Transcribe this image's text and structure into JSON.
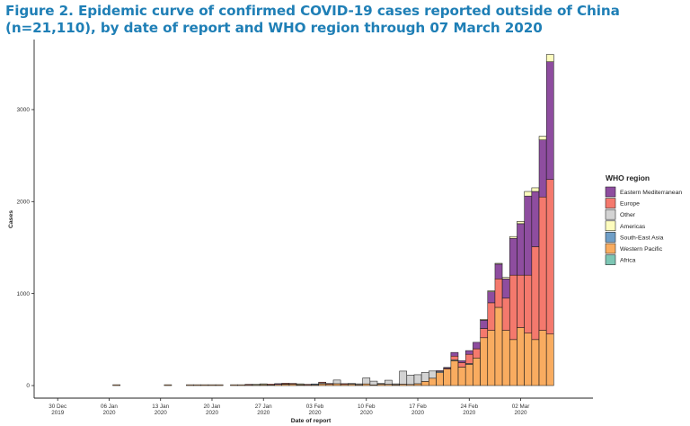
{
  "figure": {
    "title": "Figure 2. Epidemic curve of confirmed COVID-19 cases reported outside of China (n=21,110), by date of report and WHO region through 07 March 2020"
  },
  "chart_data": {
    "type": "bar",
    "stacked": true,
    "title": "Figure 2. Epidemic curve of confirmed COVID-19 cases reported outside of China (n=21,110), by date of report and WHO region through 07 March 2020",
    "xlabel": "Date of report",
    "ylabel": "Cases",
    "ylim": [
      0,
      3650
    ],
    "y_ticks": [
      0,
      1000,
      2000,
      3000
    ],
    "x_ticks": [
      {
        "day": 0,
        "line1": "30 Dec",
        "line2": "2019"
      },
      {
        "day": 7,
        "line1": "06 Jan",
        "line2": "2020"
      },
      {
        "day": 14,
        "line1": "13 Jan",
        "line2": "2020"
      },
      {
        "day": 21,
        "line1": "20 Jan",
        "line2": "2020"
      },
      {
        "day": 28,
        "line1": "27 Jan",
        "line2": "2020"
      },
      {
        "day": 35,
        "line1": "03 Feb",
        "line2": "2020"
      },
      {
        "day": 42,
        "line1": "10 Feb",
        "line2": "2020"
      },
      {
        "day": 49,
        "line1": "17 Feb",
        "line2": "2020"
      },
      {
        "day": 56,
        "line1": "24 Feb",
        "line2": "2020"
      },
      {
        "day": 63,
        "line1": "02 Mar",
        "line2": "2020"
      }
    ],
    "x_range_days": [
      -3,
      71
    ],
    "legend_title": "WHO region",
    "legend_position": "right",
    "grid": false,
    "series": [
      {
        "name": "Eastern Mediterranean",
        "color": "#8e4d9f"
      },
      {
        "name": "Europe",
        "color": "#f4796d"
      },
      {
        "name": "Other",
        "color": "#d3d3d3"
      },
      {
        "name": "Americas",
        "color": "#fdfcbe"
      },
      {
        "name": "South-East Asia",
        "color": "#6e9ec7"
      },
      {
        "name": "Western Pacific",
        "color": "#f9ac60"
      },
      {
        "name": "Africa",
        "color": "#7dc6b4"
      }
    ],
    "bars": [
      {
        "date": "2020-01-07",
        "day": 8,
        "segments": {
          "Western Pacific": 1
        }
      },
      {
        "date": "2020-01-14",
        "day": 15,
        "segments": {
          "Western Pacific": 1
        }
      },
      {
        "date": "2020-01-17",
        "day": 18,
        "segments": {
          "Western Pacific": 1
        }
      },
      {
        "date": "2020-01-18",
        "day": 19,
        "segments": {
          "Western Pacific": 1
        }
      },
      {
        "date": "2020-01-19",
        "day": 20,
        "segments": {
          "Western Pacific": 1
        }
      },
      {
        "date": "2020-01-20",
        "day": 21,
        "segments": {
          "Western Pacific": 1
        }
      },
      {
        "date": "2020-01-21",
        "day": 22,
        "segments": {
          "Western Pacific": 2
        }
      },
      {
        "date": "2020-01-23",
        "day": 24,
        "segments": {
          "Western Pacific": 3
        }
      },
      {
        "date": "2020-01-24",
        "day": 25,
        "segments": {
          "Western Pacific": 5
        }
      },
      {
        "date": "2020-01-25",
        "day": 26,
        "segments": {
          "Western Pacific": 5,
          "Europe": 3
        }
      },
      {
        "date": "2020-01-26",
        "day": 27,
        "segments": {
          "Western Pacific": 5,
          "Americas": 1
        }
      },
      {
        "date": "2020-01-27",
        "day": 28,
        "segments": {
          "Western Pacific": 10,
          "Americas": 2
        }
      },
      {
        "date": "2020-01-28",
        "day": 29,
        "segments": {
          "Western Pacific": 7,
          "Europe": 5
        }
      },
      {
        "date": "2020-01-29",
        "day": 30,
        "segments": {
          "Western Pacific": 12,
          "Eastern Mediterranean": 4
        }
      },
      {
        "date": "2020-01-30",
        "day": 31,
        "segments": {
          "Western Pacific": 15,
          "South-East Asia": 1,
          "Europe": 3
        }
      },
      {
        "date": "2020-01-31",
        "day": 32,
        "segments": {
          "Western Pacific": 15,
          "Europe": 7
        }
      },
      {
        "date": "2020-02-01",
        "day": 33,
        "segments": {
          "Western Pacific": 8,
          "Europe": 2,
          "Americas": 1
        }
      },
      {
        "date": "2020-02-02",
        "day": 34,
        "segments": {
          "Western Pacific": 5,
          "Europe": 4
        }
      },
      {
        "date": "2020-02-03",
        "day": 35,
        "segments": {
          "Western Pacific": 9,
          "South-East Asia": 3
        }
      },
      {
        "date": "2020-02-04",
        "day": 36,
        "segments": {
          "Western Pacific": 18,
          "Other": 10,
          "Europe": 5
        }
      },
      {
        "date": "2020-02-05",
        "day": 37,
        "segments": {
          "Western Pacific": 14,
          "Europe": 3
        }
      },
      {
        "date": "2020-02-06",
        "day": 38,
        "segments": {
          "Western Pacific": 20,
          "Other": 40
        }
      },
      {
        "date": "2020-02-07",
        "day": 39,
        "segments": {
          "Western Pacific": 12,
          "Europe": 4
        }
      },
      {
        "date": "2020-02-08",
        "day": 40,
        "segments": {
          "Western Pacific": 15,
          "Other": 5
        }
      },
      {
        "date": "2020-02-09",
        "day": 41,
        "segments": {
          "Western Pacific": 10,
          "Other": 6
        }
      },
      {
        "date": "2020-02-10",
        "day": 42,
        "segments": {
          "Western Pacific": 18,
          "Other": 65
        }
      },
      {
        "date": "2020-02-11",
        "day": 43,
        "segments": {
          "Western Pacific": 8,
          "Other": 40
        }
      },
      {
        "date": "2020-02-12",
        "day": 44,
        "segments": {
          "Western Pacific": 15,
          "Other": 3
        }
      },
      {
        "date": "2020-02-13",
        "day": 45,
        "segments": {
          "Western Pacific": 14,
          "Other": 44
        }
      },
      {
        "date": "2020-02-14",
        "day": 46,
        "segments": {
          "Western Pacific": 10,
          "Other": 4
        }
      },
      {
        "date": "2020-02-15",
        "day": 47,
        "segments": {
          "Western Pacific": 15,
          "Other": 142
        }
      },
      {
        "date": "2020-02-16",
        "day": 48,
        "segments": {
          "Western Pacific": 12,
          "Other": 102
        }
      },
      {
        "date": "2020-02-17",
        "day": 49,
        "segments": {
          "Western Pacific": 20,
          "Other": 98
        }
      },
      {
        "date": "2020-02-18",
        "day": 50,
        "segments": {
          "Western Pacific": 45,
          "Other": 98
        }
      },
      {
        "date": "2020-02-19",
        "day": 51,
        "segments": {
          "Western Pacific": 80,
          "Other": 78
        }
      },
      {
        "date": "2020-02-20",
        "day": 52,
        "segments": {
          "Western Pacific": 140,
          "Other": 13,
          "Eastern Mediterranean": 5
        }
      },
      {
        "date": "2020-02-21",
        "day": 53,
        "segments": {
          "Western Pacific": 180,
          "Europe": 8,
          "Eastern Mediterranean": 8
        }
      },
      {
        "date": "2020-02-22",
        "day": 54,
        "segments": {
          "Western Pacific": 270,
          "Europe": 40,
          "Eastern Mediterranean": 40,
          "Other": 10
        }
      },
      {
        "date": "2020-02-23",
        "day": 55,
        "segments": {
          "Western Pacific": 200,
          "Europe": 50,
          "Eastern Mediterranean": 20
        }
      },
      {
        "date": "2020-02-24",
        "day": 56,
        "segments": {
          "Western Pacific": 230,
          "Europe": 100,
          "Eastern Mediterranean": 40,
          "Other": 10
        }
      },
      {
        "date": "2020-02-25",
        "day": 57,
        "segments": {
          "Western Pacific": 300,
          "Europe": 100,
          "Eastern Mediterranean": 70
        }
      },
      {
        "date": "2020-02-26",
        "day": 58,
        "segments": {
          "Western Pacific": 520,
          "Europe": 100,
          "Eastern Mediterranean": 90,
          "Americas": 10
        }
      },
      {
        "date": "2020-02-27",
        "day": 59,
        "segments": {
          "Western Pacific": 600,
          "Europe": 300,
          "Eastern Mediterranean": 120,
          "Americas": 10
        }
      },
      {
        "date": "2020-02-28",
        "day": 60,
        "segments": {
          "Western Pacific": 850,
          "Europe": 310,
          "Eastern Mediterranean": 160,
          "Americas": 5
        }
      },
      {
        "date": "2020-02-29",
        "day": 61,
        "segments": {
          "Western Pacific": 600,
          "Europe": 350,
          "Eastern Mediterranean": 210,
          "Americas": 15
        }
      },
      {
        "date": "2020-03-01",
        "day": 62,
        "segments": {
          "Western Pacific": 500,
          "Europe": 700,
          "Eastern Mediterranean": 400,
          "Americas": 20
        }
      },
      {
        "date": "2020-03-02",
        "day": 63,
        "segments": {
          "Western Pacific": 630,
          "Europe": 570,
          "Eastern Mediterranean": 560,
          "Americas": 25
        }
      },
      {
        "date": "2020-03-03",
        "day": 64,
        "segments": {
          "Western Pacific": 570,
          "Europe": 630,
          "Eastern Mediterranean": 860,
          "Americas": 50
        }
      },
      {
        "date": "2020-03-04",
        "day": 65,
        "segments": {
          "Western Pacific": 500,
          "Europe": 1010,
          "Eastern Mediterranean": 600,
          "Americas": 40
        }
      },
      {
        "date": "2020-03-05",
        "day": 66,
        "segments": {
          "Western Pacific": 600,
          "Europe": 1450,
          "Eastern Mediterranean": 620,
          "Americas": 40
        }
      },
      {
        "date": "2020-03-06",
        "day": 67,
        "segments": {
          "Western Pacific": 560,
          "Europe": 1680,
          "Eastern Mediterranean": 1280,
          "Americas": 80
        }
      }
    ]
  }
}
